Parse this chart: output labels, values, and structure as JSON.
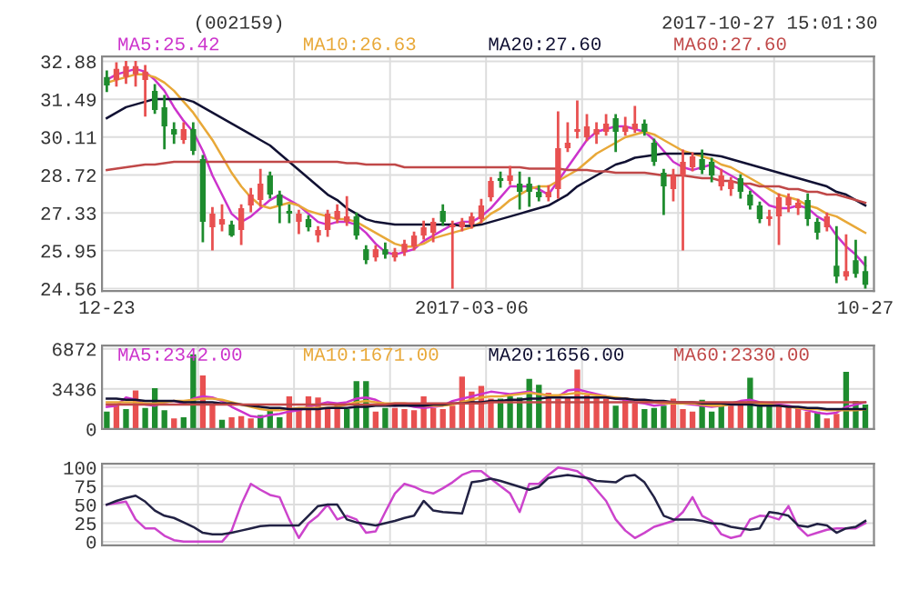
{
  "chart_data": [
    {
      "type": "candlestick",
      "title": "(002159)",
      "annotations": [
        "2017-10-27 15:01:30"
      ],
      "categories": [
        "12-23",
        null,
        null,
        null,
        null,
        null,
        null,
        null,
        null,
        null,
        null,
        null,
        null,
        null,
        null,
        null,
        null,
        null,
        null,
        null,
        null,
        null,
        null,
        null,
        null,
        null,
        null,
        null,
        null,
        null,
        null,
        null,
        null,
        null,
        null,
        null,
        null,
        null,
        "2017-03-06",
        null,
        null,
        null,
        null,
        null,
        null,
        null,
        null,
        null,
        null,
        null,
        null,
        null,
        null,
        null,
        null,
        null,
        null,
        null,
        null,
        null,
        null,
        null,
        null,
        null,
        null,
        null,
        null,
        null,
        null,
        null,
        null,
        null,
        null,
        null,
        null,
        null,
        null,
        null,
        null,
        "10-27"
      ],
      "ohlc": [
        [
          32.3,
          32.5,
          31.8,
          32.0
        ],
        [
          32.2,
          32.8,
          32.0,
          32.6
        ],
        [
          32.3,
          32.85,
          32.1,
          32.7
        ],
        [
          32.4,
          32.85,
          32.0,
          32.7
        ],
        [
          32.2,
          32.7,
          30.9,
          32.5
        ],
        [
          31.8,
          32.0,
          31.0,
          31.1
        ],
        [
          31.2,
          31.6,
          29.7,
          30.5
        ],
        [
          30.4,
          30.6,
          29.9,
          30.2
        ],
        [
          30.0,
          30.6,
          29.9,
          30.4
        ],
        [
          30.4,
          30.6,
          29.5,
          29.6
        ],
        [
          29.3,
          29.4,
          26.3,
          27.0
        ],
        [
          26.8,
          27.5,
          26.0,
          27.3
        ],
        [
          26.9,
          27.6,
          26.7,
          27.1
        ],
        [
          26.9,
          27.0,
          26.5,
          26.5
        ],
        [
          26.7,
          27.6,
          26.2,
          27.5
        ],
        [
          27.6,
          28.2,
          27.4,
          28.0
        ],
        [
          27.8,
          28.9,
          27.6,
          28.4
        ],
        [
          28.7,
          28.8,
          27.9,
          28.0
        ],
        [
          28.0,
          28.1,
          27.0,
          27.6
        ],
        [
          27.4,
          27.6,
          27.0,
          27.3
        ],
        [
          27.0,
          27.4,
          26.6,
          27.3
        ],
        [
          27.1,
          27.2,
          26.7,
          26.8
        ],
        [
          26.5,
          26.8,
          26.3,
          26.7
        ],
        [
          26.7,
          27.4,
          26.5,
          27.3
        ],
        [
          27.1,
          27.6,
          27.0,
          27.4
        ],
        [
          27.0,
          27.9,
          26.9,
          27.2
        ],
        [
          27.2,
          27.3,
          26.4,
          26.5
        ],
        [
          26.0,
          26.1,
          25.5,
          25.6
        ],
        [
          25.7,
          26.1,
          25.6,
          26.0
        ],
        [
          26.0,
          26.2,
          25.7,
          25.8
        ],
        [
          25.7,
          26.0,
          25.6,
          25.9
        ],
        [
          25.9,
          26.3,
          25.8,
          26.2
        ],
        [
          26.1,
          26.6,
          26.0,
          26.5
        ],
        [
          26.5,
          27.0,
          26.4,
          26.8
        ],
        [
          26.6,
          27.1,
          26.3,
          27.0
        ],
        [
          27.4,
          27.6,
          26.9,
          27.0
        ],
        [
          26.8,
          27.0,
          24.6,
          26.9
        ],
        [
          26.8,
          27.1,
          26.7,
          27.0
        ],
        [
          26.9,
          27.3,
          26.8,
          27.2
        ],
        [
          27.1,
          27.8,
          27.0,
          27.6
        ],
        [
          27.9,
          28.6,
          27.8,
          28.5
        ],
        [
          28.6,
          28.8,
          28.3,
          28.5
        ],
        [
          28.5,
          29.0,
          28.4,
          28.7
        ],
        [
          28.4,
          28.8,
          27.5,
          28.1
        ],
        [
          28.4,
          28.6,
          27.6,
          28.1
        ],
        [
          28.1,
          28.3,
          27.8,
          27.9
        ],
        [
          27.9,
          28.3,
          27.8,
          28.1
        ],
        [
          28.2,
          31.0,
          27.9,
          29.7
        ],
        [
          29.7,
          30.6,
          29.6,
          29.9
        ],
        [
          30.3,
          31.4,
          30.1,
          30.4
        ],
        [
          30.1,
          30.9,
          30.0,
          30.5
        ],
        [
          30.2,
          30.6,
          29.9,
          30.4
        ],
        [
          30.3,
          30.9,
          30.2,
          30.6
        ],
        [
          30.8,
          30.9,
          29.6,
          30.3
        ],
        [
          30.3,
          30.8,
          30.2,
          30.5
        ],
        [
          30.4,
          31.2,
          30.3,
          30.6
        ],
        [
          30.6,
          30.7,
          30.2,
          30.3
        ],
        [
          29.9,
          30.0,
          29.1,
          29.2
        ],
        [
          28.8,
          28.9,
          27.3,
          28.3
        ],
        [
          28.2,
          28.9,
          27.8,
          28.7
        ],
        [
          28.7,
          29.6,
          26.0,
          29.2
        ],
        [
          29.0,
          29.5,
          28.9,
          29.4
        ],
        [
          29.3,
          29.6,
          28.8,
          28.9
        ],
        [
          29.2,
          29.3,
          28.5,
          28.7
        ],
        [
          28.3,
          28.9,
          28.2,
          28.7
        ],
        [
          28.2,
          28.6,
          28.0,
          28.5
        ],
        [
          28.6,
          28.7,
          27.9,
          28.1
        ],
        [
          28.0,
          28.1,
          27.5,
          27.6
        ],
        [
          27.6,
          27.7,
          27.0,
          27.1
        ],
        [
          27.1,
          27.4,
          26.9,
          27.2
        ],
        [
          27.2,
          28.0,
          26.2,
          27.9
        ],
        [
          27.6,
          28.0,
          27.4,
          27.9
        ],
        [
          27.5,
          27.8,
          27.3,
          27.7
        ],
        [
          27.8,
          28.0,
          26.9,
          27.1
        ],
        [
          27.0,
          27.1,
          26.4,
          26.6
        ],
        [
          26.8,
          27.3,
          26.7,
          27.2
        ],
        [
          25.4,
          26.8,
          24.8,
          25.0
        ],
        [
          25.0,
          26.5,
          24.9,
          25.2
        ],
        [
          25.6,
          26.3,
          25.0,
          25.1
        ],
        [
          25.2,
          25.7,
          24.6,
          24.7
        ]
      ],
      "colors": [
        "#1e8c2e",
        "#e85050",
        "#e85050",
        "#e85050",
        "#e85050",
        "#1e8c2e",
        "#1e8c2e",
        "#1e8c2e",
        "#e85050",
        "#1e8c2e",
        "#1e8c2e",
        "#e85050",
        "#e85050",
        "#1e8c2e",
        "#e85050",
        "#e85050",
        "#e85050",
        "#1e8c2e",
        "#1e8c2e",
        "#1e8c2e",
        "#e85050",
        "#1e8c2e",
        "#e85050",
        "#e85050",
        "#e85050",
        "#e85050",
        "#1e8c2e",
        "#1e8c2e",
        "#e85050",
        "#1e8c2e",
        "#e85050",
        "#e85050",
        "#e85050",
        "#e85050",
        "#e85050",
        "#1e8c2e",
        "#e85050",
        "#e85050",
        "#e85050",
        "#e85050",
        "#e85050",
        "#1e8c2e",
        "#e85050",
        "#1e8c2e",
        "#1e8c2e",
        "#1e8c2e",
        "#e85050",
        "#e85050",
        "#e85050",
        "#e85050",
        "#e85050",
        "#e85050",
        "#e85050",
        "#1e8c2e",
        "#e85050",
        "#e85050",
        "#1e8c2e",
        "#1e8c2e",
        "#1e8c2e",
        "#e85050",
        "#e85050",
        "#e85050",
        "#1e8c2e",
        "#1e8c2e",
        "#e85050",
        "#e85050",
        "#1e8c2e",
        "#1e8c2e",
        "#1e8c2e",
        "#e85050",
        "#e85050",
        "#e85050",
        "#e85050",
        "#1e8c2e",
        "#1e8c2e",
        "#e85050",
        "#1e8c2e",
        "#e85050",
        "#1e8c2e",
        "#1e8c2e"
      ],
      "series": [
        {
          "type": "line",
          "name": "MA5:25.42",
          "color": "#cc33cc",
          "values": [
            32.2,
            32.4,
            32.5,
            32.6,
            32.5,
            32.2,
            31.8,
            31.2,
            30.7,
            30.3,
            29.6,
            28.7,
            28.0,
            27.3,
            27.0,
            27.2,
            27.5,
            27.8,
            28.0,
            27.8,
            27.6,
            27.3,
            27.0,
            26.9,
            27.0,
            27.0,
            26.9,
            26.6,
            26.2,
            25.9,
            25.8,
            25.9,
            26.0,
            26.3,
            26.5,
            26.7,
            26.9,
            27.0,
            27.0,
            27.2,
            27.5,
            27.9,
            28.3,
            28.3,
            28.3,
            28.2,
            28.0,
            28.5,
            29.0,
            29.5,
            30.0,
            30.3,
            30.4,
            30.5,
            30.5,
            30.4,
            30.3,
            30.0,
            29.6,
            29.2,
            29.0,
            28.9,
            29.0,
            29.1,
            28.9,
            28.7,
            28.5,
            28.2,
            27.9,
            27.6,
            27.5,
            27.5,
            27.6,
            27.5,
            27.2,
            27.0,
            26.5,
            26.1,
            25.8,
            25.4
          ]
        },
        {
          "type": "line",
          "name": "MA10:26.63",
          "color": "#e8a838",
          "values": [
            32.1,
            32.2,
            32.3,
            32.4,
            32.4,
            32.3,
            32.1,
            31.8,
            31.4,
            31.0,
            30.5,
            30.0,
            29.4,
            28.8,
            28.3,
            27.9,
            27.6,
            27.5,
            27.6,
            27.7,
            27.6,
            27.4,
            27.3,
            27.2,
            27.1,
            27.1,
            27.0,
            26.8,
            26.6,
            26.4,
            26.2,
            26.1,
            26.1,
            26.2,
            26.4,
            26.5,
            26.6,
            26.7,
            26.8,
            27.0,
            27.3,
            27.5,
            27.8,
            28.0,
            28.2,
            28.3,
            28.3,
            28.5,
            28.7,
            28.9,
            29.2,
            29.5,
            29.7,
            29.9,
            30.1,
            30.2,
            30.3,
            30.2,
            30.0,
            29.8,
            29.6,
            29.5,
            29.4,
            29.3,
            29.1,
            29.0,
            28.8,
            28.6,
            28.4,
            28.2,
            28.0,
            27.9,
            27.8,
            27.6,
            27.5,
            27.3,
            27.2,
            27.0,
            26.8,
            26.6
          ]
        },
        {
          "type": "line",
          "name": "MA20:27.60",
          "color": "#111133",
          "values": [
            30.8,
            31.0,
            31.2,
            31.3,
            31.4,
            31.5,
            31.5,
            31.5,
            31.5,
            31.4,
            31.2,
            31.0,
            30.8,
            30.6,
            30.4,
            30.2,
            30.0,
            29.8,
            29.5,
            29.2,
            28.9,
            28.6,
            28.3,
            28.0,
            27.8,
            27.5,
            27.3,
            27.1,
            27.0,
            26.95,
            26.9,
            26.9,
            26.9,
            26.9,
            26.9,
            26.9,
            26.9,
            26.85,
            26.85,
            26.9,
            27.0,
            27.1,
            27.2,
            27.3,
            27.4,
            27.5,
            27.6,
            27.8,
            28.0,
            28.3,
            28.5,
            28.7,
            28.9,
            29.1,
            29.2,
            29.35,
            29.4,
            29.45,
            29.5,
            29.5,
            29.5,
            29.5,
            29.5,
            29.45,
            29.4,
            29.3,
            29.2,
            29.1,
            29.0,
            28.9,
            28.8,
            28.7,
            28.6,
            28.5,
            28.4,
            28.3,
            28.1,
            28.0,
            27.8,
            27.6
          ]
        },
        {
          "type": "line",
          "name": "MA60:27.60",
          "color": "#c04848",
          "values": [
            28.9,
            28.95,
            29.0,
            29.05,
            29.1,
            29.1,
            29.15,
            29.2,
            29.2,
            29.2,
            29.2,
            29.2,
            29.2,
            29.2,
            29.2,
            29.2,
            29.2,
            29.2,
            29.2,
            29.2,
            29.2,
            29.2,
            29.2,
            29.2,
            29.2,
            29.15,
            29.15,
            29.1,
            29.1,
            29.1,
            29.1,
            29.0,
            29.0,
            29.0,
            29.0,
            29.0,
            29.0,
            29.0,
            29.0,
            29.0,
            29.0,
            29.0,
            29.0,
            29.0,
            28.95,
            28.95,
            28.95,
            28.95,
            28.9,
            28.9,
            28.9,
            28.85,
            28.85,
            28.8,
            28.8,
            28.8,
            28.8,
            28.75,
            28.7,
            28.7,
            28.7,
            28.65,
            28.6,
            28.6,
            28.5,
            28.5,
            28.4,
            28.4,
            28.3,
            28.3,
            28.3,
            28.2,
            28.2,
            28.1,
            28.1,
            28.0,
            28.0,
            27.9,
            27.8,
            27.7
          ]
        }
      ],
      "ylim": [
        24.47,
        33.06
      ],
      "yticks": [
        24.56,
        25.95,
        27.33,
        28.72,
        30.11,
        31.49,
        32.88
      ],
      "grid": true,
      "legend": "top"
    },
    {
      "type": "bar",
      "categories": [
        null,
        null,
        null,
        null,
        null,
        null,
        null,
        null,
        null,
        null,
        null,
        null,
        null,
        null,
        null,
        null,
        null,
        null,
        null,
        null,
        null,
        null,
        null,
        null,
        null,
        null,
        null,
        null,
        null,
        null,
        null,
        null,
        null,
        null,
        null,
        null,
        null,
        null,
        null,
        null,
        null,
        null,
        null,
        null,
        null,
        null,
        null,
        null,
        null,
        null,
        null,
        null,
        null,
        null,
        null,
        null,
        null,
        null,
        null,
        null,
        null,
        null,
        null,
        null,
        null,
        null,
        null,
        null,
        null,
        null,
        null,
        null,
        null,
        null,
        null,
        null,
        null,
        null,
        null,
        null
      ],
      "series": [
        {
          "type": "bar",
          "values": [
            1500,
            2200,
            1700,
            3300,
            1800,
            3500,
            1600,
            900,
            1000,
            6400,
            4600,
            2100,
            800,
            1000,
            1100,
            900,
            1200,
            1600,
            1000,
            2800,
            1700,
            2800,
            2700,
            1800,
            2100,
            1700,
            4100,
            4100,
            1500,
            1800,
            1800,
            1700,
            1600,
            2800,
            1800,
            1700,
            2000,
            4500,
            3200,
            3700,
            2600,
            2600,
            2800,
            2700,
            4300,
            3800,
            3100,
            2600,
            2700,
            5100,
            2900,
            2700,
            2600,
            2000,
            2700,
            2200,
            1700,
            1800,
            2000,
            2600,
            1700,
            1500,
            2500,
            1500,
            2000,
            2000,
            2300,
            4400,
            2000,
            2000,
            2100,
            1900,
            1900,
            1500,
            1500,
            900,
            1300,
            4900,
            2400,
            2100
          ],
          "colors": [
            "#1e8c2e",
            "#e85050",
            "#1e8c2e",
            "#e85050",
            "#1e8c2e",
            "#1e8c2e",
            "#1e8c2e",
            "#e85050",
            "#1e8c2e",
            "#1e8c2e",
            "#e85050",
            "#e85050",
            "#1e8c2e",
            "#e85050",
            "#e85050",
            "#e85050",
            "#1e8c2e",
            "#1e8c2e",
            "#1e8c2e",
            "#e85050",
            "#e85050",
            "#e85050",
            "#e85050",
            "#e85050",
            "#e85050",
            "#1e8c2e",
            "#1e8c2e",
            "#1e8c2e",
            "#e85050",
            "#1e8c2e",
            "#e85050",
            "#e85050",
            "#e85050",
            "#e85050",
            "#e85050",
            "#e85050",
            "#e85050",
            "#e85050",
            "#e85050",
            "#e85050",
            "#e85050",
            "#1e8c2e",
            "#1e8c2e",
            "#1e8c2e",
            "#1e8c2e",
            "#1e8c2e",
            "#e85050",
            "#e85050",
            "#e85050",
            "#e85050",
            "#e85050",
            "#e85050",
            "#e85050",
            "#1e8c2e",
            "#e85050",
            "#e85050",
            "#1e8c2e",
            "#1e8c2e",
            "#1e8c2e",
            "#e85050",
            "#e85050",
            "#e85050",
            "#1e8c2e",
            "#1e8c2e",
            "#1e8c2e",
            "#e85050",
            "#e85050",
            "#1e8c2e",
            "#1e8c2e",
            "#1e8c2e",
            "#e85050",
            "#e85050",
            "#e85050",
            "#e85050",
            "#1e8c2e",
            "#e85050",
            "#e85050",
            "#1e8c2e",
            "#1e8c2e",
            "#1e8c2e"
          ]
        },
        {
          "type": "line",
          "name": "MA5:2342.00",
          "color": "#cc33cc",
          "values": [
            1900,
            2000,
            2700,
            2500,
            2100,
            2000,
            2300,
            2400,
            2200,
            2600,
            2800,
            2700,
            2400,
            1900,
            1500,
            1100,
            1000,
            1200,
            1300,
            1500,
            1600,
            1900,
            2100,
            2300,
            2200,
            2300,
            2600,
            2700,
            2500,
            2100,
            2000,
            2100,
            1900,
            1800,
            1900,
            2000,
            2400,
            2600,
            2800,
            3000,
            3200,
            3100,
            3000,
            3100,
            3200,
            3000,
            2900,
            2800,
            3300,
            3400,
            3200,
            3000,
            2800,
            2600,
            2500,
            2300,
            2200,
            2000,
            2100,
            2300,
            2200,
            2100,
            2000,
            1900,
            2000,
            2200,
            2400,
            2500,
            2300,
            2200,
            2100,
            2000,
            1800,
            1600,
            1400,
            1300,
            1400,
            1900,
            2100,
            2300
          ]
        },
        {
          "type": "line",
          "name": "MA10:1671.00",
          "color": "#e8a838",
          "values": [
            2300,
            2300,
            2300,
            2300,
            2200,
            2200,
            2300,
            2400,
            2400,
            2500,
            2600,
            2600,
            2500,
            2300,
            2100,
            1900,
            1700,
            1600,
            1600,
            1700,
            1800,
            1800,
            1800,
            1800,
            1900,
            2100,
            2300,
            2400,
            2300,
            2200,
            2200,
            2200,
            2100,
            2000,
            2000,
            2000,
            2100,
            2300,
            2500,
            2700,
            2800,
            2800,
            2900,
            3000,
            3100,
            3000,
            2900,
            2900,
            3000,
            3100,
            3000,
            2900,
            2800,
            2700,
            2600,
            2500,
            2400,
            2300,
            2200,
            2200,
            2200,
            2200,
            2100,
            2000,
            2000,
            2100,
            2200,
            2300,
            2200,
            2100,
            2000,
            1900,
            1800,
            1700,
            1700,
            1600,
            1600,
            1600,
            1600,
            1700
          ]
        },
        {
          "type": "line",
          "name": "MA20:1656.00",
          "color": "#111133",
          "values": [
            2600,
            2600,
            2500,
            2500,
            2400,
            2400,
            2400,
            2400,
            2300,
            2300,
            2300,
            2300,
            2200,
            2200,
            2100,
            2000,
            1900,
            1800,
            1800,
            1700,
            1700,
            1700,
            1700,
            1800,
            1800,
            1800,
            1900,
            1900,
            2000,
            2000,
            2000,
            2000,
            2000,
            2000,
            2100,
            2100,
            2200,
            2200,
            2300,
            2300,
            2400,
            2400,
            2500,
            2500,
            2600,
            2600,
            2700,
            2700,
            2700,
            2700,
            2700,
            2700,
            2700,
            2600,
            2600,
            2500,
            2500,
            2400,
            2400,
            2300,
            2300,
            2300,
            2200,
            2200,
            2200,
            2100,
            2100,
            2100,
            2000,
            2000,
            2000,
            1900,
            1900,
            1800,
            1800,
            1700,
            1700,
            1700,
            1700,
            1700
          ]
        },
        {
          "type": "line",
          "name": "MA60:2330.00",
          "color": "#c04848",
          "values": [
            2100,
            2100,
            2100,
            2100,
            2100,
            2100,
            2100,
            2100,
            2100,
            2100,
            2100,
            2100,
            2100,
            2100,
            2100,
            2100,
            2100,
            2100,
            2100,
            2100,
            2100,
            2100,
            2100,
            2100,
            2100,
            2100,
            2100,
            2100,
            2100,
            2100,
            2200,
            2200,
            2200,
            2200,
            2200,
            2200,
            2200,
            2200,
            2200,
            2200,
            2300,
            2300,
            2300,
            2300,
            2300,
            2300,
            2300,
            2300,
            2300,
            2300,
            2300,
            2300,
            2300,
            2300,
            2300,
            2300,
            2300,
            2300,
            2300,
            2300,
            2300,
            2300,
            2300,
            2300,
            2300,
            2300,
            2300,
            2300,
            2300,
            2300,
            2300,
            2300,
            2300,
            2300,
            2300,
            2300,
            2300,
            2300,
            2300,
            2300
          ]
        }
      ],
      "ylim": [
        0,
        7150
      ],
      "yticks": [
        0,
        3436,
        6872
      ],
      "grid": true,
      "legend": "top",
      "tick_labels": "y"
    },
    {
      "type": "line",
      "categories": [
        null,
        null,
        null,
        null,
        null,
        null,
        null,
        null,
        null,
        null,
        null,
        null,
        null,
        null,
        null,
        null,
        null,
        null,
        null,
        null,
        null,
        null,
        null,
        null,
        null,
        null,
        null,
        null,
        null,
        null,
        null,
        null,
        null,
        null,
        null,
        null,
        null,
        null,
        null,
        null,
        null,
        null,
        null,
        null,
        null,
        null,
        null,
        null,
        null,
        null,
        null,
        null,
        null,
        null,
        null,
        null,
        null,
        null,
        null,
        null,
        null,
        null,
        null,
        null,
        null,
        null,
        null,
        null,
        null,
        null,
        null,
        null,
        null,
        null,
        null,
        null,
        null,
        null,
        null,
        null
      ],
      "series": [
        {
          "color": "#cc44cc",
          "values": [
            50,
            52,
            54,
            30,
            18,
            18,
            8,
            2,
            0,
            0,
            0,
            0,
            0,
            15,
            50,
            78,
            70,
            63,
            60,
            30,
            5,
            25,
            35,
            50,
            30,
            35,
            30,
            12,
            14,
            40,
            65,
            78,
            74,
            68,
            65,
            72,
            80,
            90,
            95,
            95,
            85,
            75,
            65,
            40,
            78,
            78,
            90,
            100,
            98,
            95,
            85,
            70,
            55,
            30,
            15,
            5,
            12,
            20,
            24,
            28,
            40,
            60,
            35,
            28,
            10,
            5,
            8,
            30,
            35,
            34,
            30,
            48,
            20,
            8,
            12,
            16,
            18,
            18,
            18,
            25
          ]
        },
        {
          "color": "#222244",
          "values": [
            50,
            55,
            59,
            62,
            54,
            42,
            35,
            32,
            26,
            20,
            12,
            10,
            10,
            12,
            15,
            18,
            21,
            22,
            22,
            22,
            22,
            35,
            48,
            50,
            50,
            30,
            26,
            24,
            22,
            25,
            28,
            32,
            35,
            55,
            42,
            40,
            39,
            38,
            80,
            82,
            85,
            82,
            78,
            74,
            70,
            74,
            86,
            88,
            90,
            88,
            86,
            82,
            81,
            80,
            88,
            90,
            80,
            60,
            35,
            30,
            30,
            30,
            28,
            25,
            24,
            20,
            18,
            16,
            18,
            40,
            38,
            35,
            22,
            20,
            24,
            22,
            12,
            18,
            20,
            28
          ]
        }
      ],
      "ylim": [
        -5,
        105
      ],
      "yticks": [
        0,
        25,
        50,
        75,
        100
      ],
      "grid": true,
      "tick_labels": "y"
    }
  ]
}
